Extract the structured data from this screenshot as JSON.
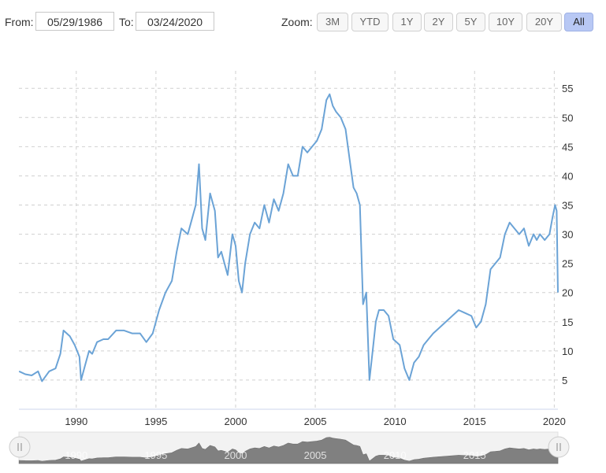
{
  "range_selector": {
    "from_label": "From:",
    "from_value": "05/29/1986",
    "to_label": "To:",
    "to_value": "03/24/2020"
  },
  "zoom": {
    "label": "Zoom:",
    "buttons": [
      "3M",
      "YTD",
      "1Y",
      "2Y",
      "5Y",
      "10Y",
      "20Y",
      "All"
    ],
    "active": "All"
  },
  "colors": {
    "series_line": "#6ba3d6",
    "navigator_fill": "#808080",
    "active_zoom": "#b8c8f4"
  },
  "chart_data": {
    "type": "line",
    "x_tick_labels": [
      "1990",
      "1995",
      "2000",
      "2005",
      "2010",
      "2015",
      "2020"
    ],
    "y_tick_labels": [
      "5",
      "10",
      "15",
      "20",
      "25",
      "30",
      "35",
      "40",
      "45",
      "50",
      "55"
    ],
    "xlim": [
      1986.4,
      2020.23
    ],
    "ylim": [
      0,
      58
    ],
    "grid": true,
    "series": [
      {
        "x": [
          1986.41,
          1986.8,
          1987.2,
          1987.6,
          1987.85,
          1988.3,
          1988.7,
          1989.0,
          1989.2,
          1989.6,
          1989.9,
          1990.2,
          1990.3,
          1990.6,
          1990.8,
          1991.0,
          1991.3,
          1991.7,
          1992.0,
          1992.5,
          1993.0,
          1993.5,
          1994.0,
          1994.4,
          1994.8,
          1995.2,
          1995.6,
          1996.0,
          1996.3,
          1996.6,
          1997.0,
          1997.3,
          1997.5,
          1997.7,
          1997.9,
          1998.1,
          1998.4,
          1998.7,
          1998.9,
          1999.1,
          1999.5,
          1999.8,
          2000.0,
          2000.2,
          2000.4,
          2000.6,
          2000.9,
          2001.2,
          2001.5,
          2001.8,
          2002.1,
          2002.4,
          2002.7,
          2003.0,
          2003.3,
          2003.6,
          2003.9,
          2004.2,
          2004.5,
          2004.8,
          2005.1,
          2005.4,
          2005.7,
          2005.9,
          2006.1,
          2006.3,
          2006.6,
          2006.9,
          2007.2,
          2007.4,
          2007.6,
          2007.8,
          2008.0,
          2008.2,
          2008.4,
          2008.6,
          2008.8,
          2009.0,
          2009.3,
          2009.6,
          2009.9,
          2010.3,
          2010.6,
          2010.9,
          2011.2,
          2011.5,
          2011.8,
          2012.1,
          2012.4,
          2012.8,
          2013.2,
          2013.6,
          2014.0,
          2014.4,
          2014.8,
          2015.1,
          2015.4,
          2015.7,
          2016.0,
          2016.3,
          2016.6,
          2016.9,
          2017.2,
          2017.5,
          2017.8,
          2018.1,
          2018.4,
          2018.7,
          2018.9,
          2019.1,
          2019.4,
          2019.7,
          2019.9,
          2020.05,
          2020.15,
          2020.23
        ],
        "y": [
          6.5,
          6.0,
          5.8,
          6.5,
          4.8,
          6.5,
          7.0,
          9.5,
          13.5,
          12.5,
          11.0,
          9.0,
          5.0,
          8.0,
          10.0,
          9.5,
          11.5,
          12.0,
          12.0,
          13.5,
          13.5,
          13.0,
          13.0,
          11.5,
          13.0,
          17.0,
          20.0,
          22.0,
          27.0,
          31.0,
          30.0,
          33.0,
          35.0,
          42.0,
          31.0,
          29.0,
          37.0,
          34.0,
          26.0,
          27.0,
          23.0,
          30.0,
          28.0,
          22.0,
          20.0,
          25.0,
          30.0,
          32.0,
          31.0,
          35.0,
          32.0,
          36.0,
          34.0,
          37.0,
          42.0,
          40.0,
          40.0,
          45.0,
          44.0,
          45.0,
          46.0,
          48.0,
          53.0,
          54.0,
          52.0,
          51.0,
          50.0,
          48.0,
          42.0,
          38.0,
          37.0,
          35.0,
          18.0,
          20.0,
          5.0,
          10.0,
          15.0,
          17.0,
          17.0,
          16.0,
          12.0,
          11.0,
          7.0,
          5.0,
          8.0,
          9.0,
          11.0,
          12.0,
          13.0,
          14.0,
          15.0,
          16.0,
          17.0,
          16.5,
          16.0,
          14.0,
          15.0,
          18.0,
          24.0,
          25.0,
          26.0,
          30.0,
          32.0,
          31.0,
          30.0,
          31.0,
          28.0,
          30.0,
          29.0,
          30.0,
          29.0,
          30.0,
          33.0,
          35.0,
          34.0,
          20.0
        ]
      }
    ],
    "navigator_labels": [
      "1990",
      "1995",
      "2000",
      "2005",
      "2010",
      "2015"
    ]
  }
}
